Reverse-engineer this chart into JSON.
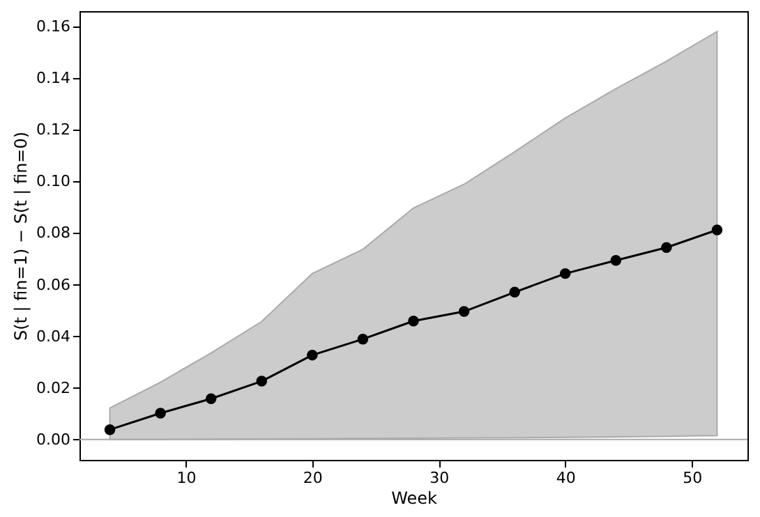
{
  "chart_data": {
    "type": "line",
    "xlabel": "Week",
    "ylabel": "S(t | fin=1) − S(t | fin=0)",
    "x": [
      4,
      8,
      12,
      16,
      20,
      24,
      28,
      32,
      36,
      40,
      44,
      48,
      52
    ],
    "series": [
      {
        "color": "#000000",
        "values": [
          0.0038,
          0.0102,
          0.0158,
          0.0226,
          0.0327,
          0.0389,
          0.0459,
          0.0496,
          0.0571,
          0.0643,
          0.0694,
          0.0744,
          0.0812
        ],
        "lower": [
          0.0,
          0.0,
          0.0001,
          0.0002,
          0.0003,
          0.0004,
          0.0005,
          0.0006,
          0.0007,
          0.0008,
          0.001,
          0.0012,
          0.0015
        ],
        "upper": [
          0.0122,
          0.0222,
          0.0335,
          0.0457,
          0.0643,
          0.0737,
          0.0897,
          0.0989,
          0.1115,
          0.1246,
          0.1359,
          0.1466,
          0.1581
        ]
      }
    ],
    "xlim": [
      1.6,
      54.4
    ],
    "xticks": [
      10,
      20,
      30,
      40,
      50
    ],
    "ylim": [
      -0.0079,
      0.166
    ],
    "yticks": [
      {
        "value": 0,
        "label": "0.00"
      },
      {
        "value": 0.02,
        "label": "0.02"
      },
      {
        "value": 0.04,
        "label": "0.04"
      },
      {
        "value": 0.06,
        "label": "0.06"
      },
      {
        "value": 0.08,
        "label": "0.08"
      },
      {
        "value": 0.1,
        "label": "0.10"
      },
      {
        "value": 0.12,
        "label": "0.12"
      },
      {
        "value": 0.14,
        "label": "0.14"
      },
      {
        "value": 0.16,
        "label": "0.16"
      }
    ],
    "ref_lines": [
      {
        "axis": "y",
        "value": 0,
        "color": "#aaaaaa"
      }
    ],
    "marker": "circle",
    "line_style": "solid",
    "grid": false
  }
}
